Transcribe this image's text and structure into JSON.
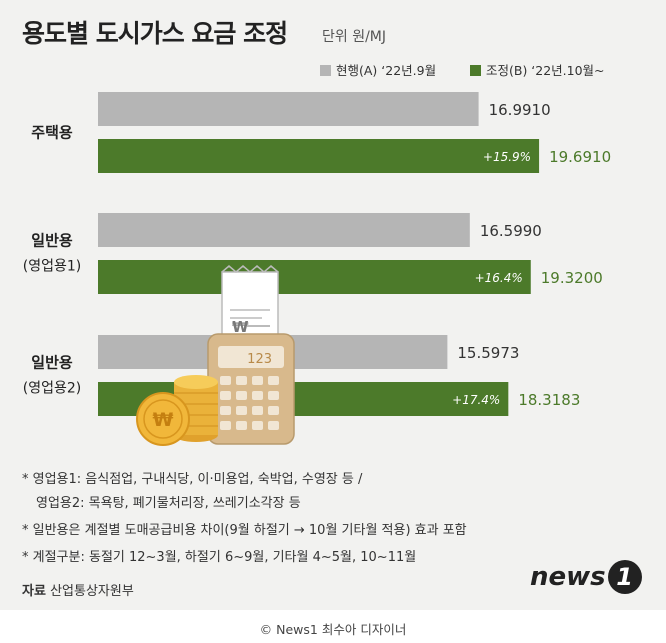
{
  "title": "용도별 도시가스 요금 조정",
  "unit": "단위 원/MJ",
  "colors": {
    "current": "#b5b5b5",
    "adjusted": "#4c7a2a",
    "adjusted_text": "#4c7a2a"
  },
  "chart_data": {
    "type": "bar",
    "orientation": "horizontal",
    "categories": [
      [
        "주택용"
      ],
      [
        "일반용",
        "(영업용1)"
      ],
      [
        "일반용",
        "(영업용2)"
      ]
    ],
    "series": [
      {
        "name": "현행(A) ‘22년.9월",
        "values": [
          16.991,
          16.599,
          15.5973
        ],
        "labels": [
          "16.9910",
          "16.5990",
          "15.5973"
        ]
      },
      {
        "name": "조정(B) ‘22년.10월~",
        "values": [
          19.691,
          19.32,
          18.3183
        ],
        "labels": [
          "19.6910",
          "19.3200",
          "18.3183"
        ]
      }
    ],
    "changes": [
      "+15.9%",
      "+16.4%",
      "+17.4%"
    ],
    "xlim": [
      0,
      22
    ],
    "grid": false,
    "legend": "top-right"
  },
  "calculator_display": "123",
  "receipt_symbol": "₩",
  "coin_symbol": "₩",
  "notes": [
    "* 영업용1: 음식점업, 구내식당, 이·미용업, 숙박업, 수영장 등 /",
    "영업용2: 목욕탕, 폐기물처리장, 쓰레기소각장 등",
    "* 일반용은 계절별 도매공급비용 차이(9월 하절기 → 10월 기타월 적용) 효과 포함",
    "* 계절구분: 동절기 12~3월, 하절기 6~9월, 기타월 4~5월, 10~11월"
  ],
  "source_label": "자료",
  "source": "산업통상자원부",
  "logo": {
    "text": "news",
    "mark": "1"
  },
  "credit": "© News1 최수아 디자이너"
}
